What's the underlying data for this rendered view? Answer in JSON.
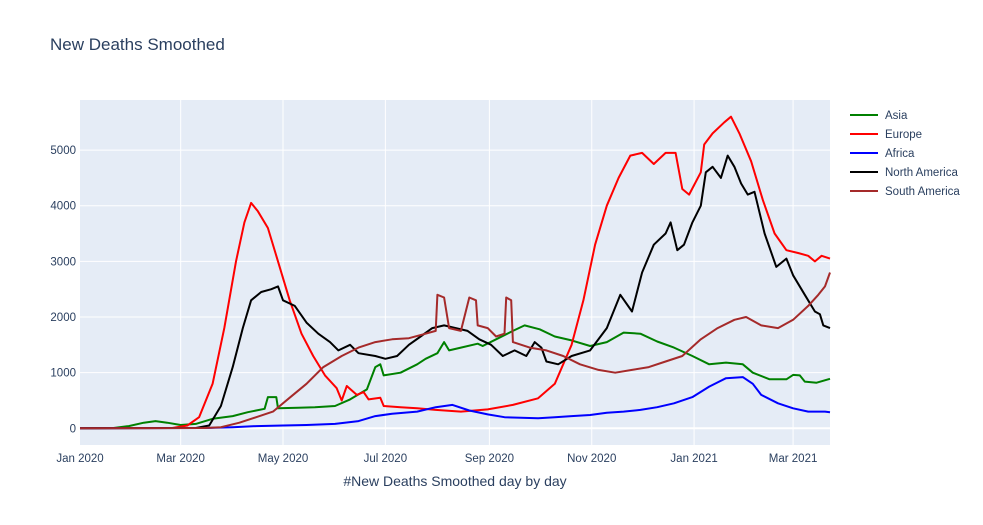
{
  "chart_data": {
    "type": "line",
    "title": "New Deaths Smoothed",
    "xlabel": "#New Deaths Smoothed day by day",
    "ylabel": "",
    "x_range": [
      "2020-01-01",
      "2021-03-23"
    ],
    "ylim": [
      -300,
      5900
    ],
    "grid": true,
    "legend_position": "right",
    "x_ticks": [
      {
        "date": "2020-01-01",
        "label": "Jan 2020"
      },
      {
        "date": "2020-03-01",
        "label": "Mar 2020"
      },
      {
        "date": "2020-05-01",
        "label": "May 2020"
      },
      {
        "date": "2020-07-01",
        "label": "Jul 2020"
      },
      {
        "date": "2020-09-01",
        "label": "Sep 2020"
      },
      {
        "date": "2020-11-01",
        "label": "Nov 2020"
      },
      {
        "date": "2021-01-01",
        "label": "Jan 2021"
      },
      {
        "date": "2021-03-01",
        "label": "Mar 2021"
      }
    ],
    "y_ticks": [
      {
        "value": 0,
        "label": "0"
      },
      {
        "value": 1000,
        "label": "1000"
      },
      {
        "value": 2000,
        "label": "2000"
      },
      {
        "value": 3000,
        "label": "3000"
      },
      {
        "value": 4000,
        "label": "4000"
      },
      {
        "value": 5000,
        "label": "5000"
      }
    ],
    "series": [
      {
        "name": "Asia",
        "color": "#008000",
        "points": [
          [
            "2020-01-01",
            0
          ],
          [
            "2020-01-21",
            5
          ],
          [
            "2020-01-30",
            40
          ],
          [
            "2020-02-08",
            100
          ],
          [
            "2020-02-15",
            130
          ],
          [
            "2020-02-22",
            100
          ],
          [
            "2020-03-01",
            60
          ],
          [
            "2020-03-10",
            80
          ],
          [
            "2020-03-20",
            170
          ],
          [
            "2020-04-01",
            220
          ],
          [
            "2020-04-10",
            290
          ],
          [
            "2020-04-20",
            350
          ],
          [
            "2020-04-22",
            560
          ],
          [
            "2020-04-27",
            560
          ],
          [
            "2020-04-28",
            360
          ],
          [
            "2020-05-10",
            370
          ],
          [
            "2020-05-20",
            380
          ],
          [
            "2020-06-01",
            400
          ],
          [
            "2020-06-10",
            520
          ],
          [
            "2020-06-20",
            700
          ],
          [
            "2020-06-25",
            1100
          ],
          [
            "2020-06-28",
            1150
          ],
          [
            "2020-06-30",
            950
          ],
          [
            "2020-07-10",
            1000
          ],
          [
            "2020-07-20",
            1150
          ],
          [
            "2020-07-25",
            1250
          ],
          [
            "2020-08-01",
            1350
          ],
          [
            "2020-08-05",
            1550
          ],
          [
            "2020-08-08",
            1400
          ],
          [
            "2020-08-15",
            1450
          ],
          [
            "2020-08-25",
            1520
          ],
          [
            "2020-08-28",
            1480
          ],
          [
            "2020-09-05",
            1600
          ],
          [
            "2020-09-15",
            1750
          ],
          [
            "2020-09-22",
            1850
          ],
          [
            "2020-10-01",
            1780
          ],
          [
            "2020-10-10",
            1650
          ],
          [
            "2020-10-20",
            1580
          ],
          [
            "2020-10-31",
            1480
          ],
          [
            "2020-11-10",
            1550
          ],
          [
            "2020-11-20",
            1720
          ],
          [
            "2020-11-30",
            1700
          ],
          [
            "2020-12-10",
            1560
          ],
          [
            "2020-12-20",
            1450
          ],
          [
            "2020-12-31",
            1300
          ],
          [
            "2021-01-10",
            1150
          ],
          [
            "2021-01-20",
            1180
          ],
          [
            "2021-01-30",
            1150
          ],
          [
            "2021-02-05",
            1000
          ],
          [
            "2021-02-15",
            880
          ],
          [
            "2021-02-25",
            880
          ],
          [
            "2021-03-01",
            960
          ],
          [
            "2021-03-05",
            950
          ],
          [
            "2021-03-08",
            840
          ],
          [
            "2021-03-15",
            820
          ],
          [
            "2021-03-23",
            890
          ]
        ]
      },
      {
        "name": "Europe",
        "color": "#ff0000",
        "points": [
          [
            "2020-01-01",
            0
          ],
          [
            "2020-02-25",
            5
          ],
          [
            "2020-03-05",
            50
          ],
          [
            "2020-03-12",
            200
          ],
          [
            "2020-03-20",
            800
          ],
          [
            "2020-03-27",
            1800
          ],
          [
            "2020-04-03",
            3000
          ],
          [
            "2020-04-08",
            3700
          ],
          [
            "2020-04-12",
            4050
          ],
          [
            "2020-04-16",
            3900
          ],
          [
            "2020-04-22",
            3600
          ],
          [
            "2020-04-28",
            3000
          ],
          [
            "2020-05-05",
            2300
          ],
          [
            "2020-05-12",
            1700
          ],
          [
            "2020-05-19",
            1300
          ],
          [
            "2020-05-26",
            950
          ],
          [
            "2020-06-02",
            720
          ],
          [
            "2020-06-05",
            500
          ],
          [
            "2020-06-08",
            760
          ],
          [
            "2020-06-14",
            600
          ],
          [
            "2020-06-18",
            650
          ],
          [
            "2020-06-21",
            520
          ],
          [
            "2020-06-28",
            550
          ],
          [
            "2020-06-30",
            400
          ],
          [
            "2020-07-10",
            380
          ],
          [
            "2020-07-20",
            360
          ],
          [
            "2020-07-31",
            330
          ],
          [
            "2020-08-15",
            300
          ],
          [
            "2020-08-31",
            340
          ],
          [
            "2020-09-15",
            420
          ],
          [
            "2020-09-30",
            540
          ],
          [
            "2020-10-10",
            800
          ],
          [
            "2020-10-20",
            1500
          ],
          [
            "2020-10-27",
            2300
          ],
          [
            "2020-11-03",
            3300
          ],
          [
            "2020-11-10",
            4000
          ],
          [
            "2020-11-17",
            4500
          ],
          [
            "2020-11-24",
            4900
          ],
          [
            "2020-12-01",
            4950
          ],
          [
            "2020-12-08",
            4750
          ],
          [
            "2020-12-15",
            4950
          ],
          [
            "2020-12-21",
            4950
          ],
          [
            "2020-12-25",
            4300
          ],
          [
            "2020-12-29",
            4200
          ],
          [
            "2021-01-05",
            4600
          ],
          [
            "2021-01-07",
            5100
          ],
          [
            "2021-01-12",
            5300
          ],
          [
            "2021-01-19",
            5500
          ],
          [
            "2021-01-23",
            5600
          ],
          [
            "2021-01-28",
            5300
          ],
          [
            "2021-02-04",
            4800
          ],
          [
            "2021-02-11",
            4100
          ],
          [
            "2021-02-18",
            3500
          ],
          [
            "2021-02-25",
            3200
          ],
          [
            "2021-03-04",
            3150
          ],
          [
            "2021-03-10",
            3100
          ],
          [
            "2021-03-14",
            3000
          ],
          [
            "2021-03-18",
            3100
          ],
          [
            "2021-03-23",
            3050
          ]
        ]
      },
      {
        "name": "Africa",
        "color": "#0000ff",
        "points": [
          [
            "2020-01-01",
            0
          ],
          [
            "2020-03-15",
            5
          ],
          [
            "2020-04-01",
            20
          ],
          [
            "2020-04-15",
            40
          ],
          [
            "2020-05-01",
            50
          ],
          [
            "2020-05-15",
            60
          ],
          [
            "2020-06-01",
            80
          ],
          [
            "2020-06-15",
            130
          ],
          [
            "2020-06-25",
            220
          ],
          [
            "2020-07-05",
            260
          ],
          [
            "2020-07-20",
            300
          ],
          [
            "2020-07-31",
            380
          ],
          [
            "2020-08-10",
            420
          ],
          [
            "2020-08-20",
            320
          ],
          [
            "2020-08-31",
            250
          ],
          [
            "2020-09-10",
            200
          ],
          [
            "2020-09-30",
            180
          ],
          [
            "2020-10-10",
            200
          ],
          [
            "2020-10-20",
            220
          ],
          [
            "2020-10-31",
            240
          ],
          [
            "2020-11-10",
            280
          ],
          [
            "2020-11-20",
            300
          ],
          [
            "2020-11-30",
            330
          ],
          [
            "2020-12-10",
            380
          ],
          [
            "2020-12-20",
            450
          ],
          [
            "2020-12-31",
            560
          ],
          [
            "2021-01-10",
            750
          ],
          [
            "2021-01-20",
            900
          ],
          [
            "2021-01-30",
            920
          ],
          [
            "2021-02-05",
            800
          ],
          [
            "2021-02-10",
            600
          ],
          [
            "2021-02-20",
            450
          ],
          [
            "2021-03-01",
            360
          ],
          [
            "2021-03-10",
            300
          ],
          [
            "2021-03-20",
            300
          ],
          [
            "2021-03-23",
            290
          ]
        ]
      },
      {
        "name": "North America",
        "color": "#000000",
        "points": [
          [
            "2020-01-01",
            0
          ],
          [
            "2020-03-10",
            5
          ],
          [
            "2020-03-18",
            50
          ],
          [
            "2020-03-25",
            400
          ],
          [
            "2020-04-01",
            1100
          ],
          [
            "2020-04-07",
            1800
          ],
          [
            "2020-04-12",
            2300
          ],
          [
            "2020-04-18",
            2450
          ],
          [
            "2020-04-24",
            2500
          ],
          [
            "2020-04-28",
            2550
          ],
          [
            "2020-05-01",
            2300
          ],
          [
            "2020-05-08",
            2200
          ],
          [
            "2020-05-15",
            1900
          ],
          [
            "2020-05-22",
            1700
          ],
          [
            "2020-05-29",
            1550
          ],
          [
            "2020-06-03",
            1400
          ],
          [
            "2020-06-10",
            1500
          ],
          [
            "2020-06-15",
            1350
          ],
          [
            "2020-06-25",
            1300
          ],
          [
            "2020-07-01",
            1250
          ],
          [
            "2020-07-08",
            1300
          ],
          [
            "2020-07-15",
            1500
          ],
          [
            "2020-07-22",
            1650
          ],
          [
            "2020-07-29",
            1800
          ],
          [
            "2020-08-05",
            1850
          ],
          [
            "2020-08-12",
            1800
          ],
          [
            "2020-08-19",
            1750
          ],
          [
            "2020-08-26",
            1600
          ],
          [
            "2020-09-02",
            1500
          ],
          [
            "2020-09-09",
            1300
          ],
          [
            "2020-09-16",
            1400
          ],
          [
            "2020-09-23",
            1300
          ],
          [
            "2020-09-28",
            1550
          ],
          [
            "2020-10-02",
            1450
          ],
          [
            "2020-10-05",
            1200
          ],
          [
            "2020-10-12",
            1150
          ],
          [
            "2020-10-20",
            1300
          ],
          [
            "2020-10-31",
            1400
          ],
          [
            "2020-11-10",
            1800
          ],
          [
            "2020-11-18",
            2400
          ],
          [
            "2020-11-25",
            2100
          ],
          [
            "2020-12-01",
            2800
          ],
          [
            "2020-12-08",
            3300
          ],
          [
            "2020-12-15",
            3500
          ],
          [
            "2020-12-18",
            3700
          ],
          [
            "2020-12-22",
            3200
          ],
          [
            "2020-12-26",
            3300
          ],
          [
            "2020-12-31",
            3700
          ],
          [
            "2021-01-05",
            4000
          ],
          [
            "2021-01-08",
            4600
          ],
          [
            "2021-01-12",
            4700
          ],
          [
            "2021-01-17",
            4500
          ],
          [
            "2021-01-21",
            4900
          ],
          [
            "2021-01-25",
            4700
          ],
          [
            "2021-01-29",
            4400
          ],
          [
            "2021-02-02",
            4200
          ],
          [
            "2021-02-06",
            4250
          ],
          [
            "2021-02-12",
            3500
          ],
          [
            "2021-02-19",
            2900
          ],
          [
            "2021-02-25",
            3050
          ],
          [
            "2021-03-01",
            2750
          ],
          [
            "2021-03-08",
            2400
          ],
          [
            "2021-03-14",
            2100
          ],
          [
            "2021-03-17",
            2050
          ],
          [
            "2021-03-19",
            1850
          ],
          [
            "2021-03-23",
            1800
          ]
        ]
      },
      {
        "name": "South America",
        "color": "#a52a2a",
        "points": [
          [
            "2020-01-01",
            0
          ],
          [
            "2020-03-15",
            5
          ],
          [
            "2020-03-25",
            20
          ],
          [
            "2020-04-05",
            100
          ],
          [
            "2020-04-15",
            200
          ],
          [
            "2020-04-25",
            300
          ],
          [
            "2020-05-05",
            550
          ],
          [
            "2020-05-15",
            800
          ],
          [
            "2020-05-25",
            1100
          ],
          [
            "2020-06-05",
            1300
          ],
          [
            "2020-06-15",
            1450
          ],
          [
            "2020-06-25",
            1550
          ],
          [
            "2020-07-05",
            1600
          ],
          [
            "2020-07-15",
            1620
          ],
          [
            "2020-07-25",
            1700
          ],
          [
            "2020-07-31",
            1750
          ],
          [
            "2020-08-01",
            2400
          ],
          [
            "2020-08-05",
            2350
          ],
          [
            "2020-08-08",
            1800
          ],
          [
            "2020-08-15",
            1750
          ],
          [
            "2020-08-20",
            2350
          ],
          [
            "2020-08-24",
            2300
          ],
          [
            "2020-08-25",
            1850
          ],
          [
            "2020-08-31",
            1800
          ],
          [
            "2020-09-05",
            1650
          ],
          [
            "2020-09-10",
            1700
          ],
          [
            "2020-09-11",
            2350
          ],
          [
            "2020-09-14",
            2300
          ],
          [
            "2020-09-15",
            1550
          ],
          [
            "2020-09-25",
            1450
          ],
          [
            "2020-10-05",
            1400
          ],
          [
            "2020-10-15",
            1300
          ],
          [
            "2020-10-25",
            1150
          ],
          [
            "2020-11-05",
            1050
          ],
          [
            "2020-11-15",
            1000
          ],
          [
            "2020-11-25",
            1050
          ],
          [
            "2020-12-05",
            1100
          ],
          [
            "2020-12-15",
            1200
          ],
          [
            "2020-12-25",
            1300
          ],
          [
            "2021-01-05",
            1600
          ],
          [
            "2021-01-15",
            1800
          ],
          [
            "2021-01-25",
            1950
          ],
          [
            "2021-02-01",
            2000
          ],
          [
            "2021-02-10",
            1850
          ],
          [
            "2021-02-20",
            1800
          ],
          [
            "2021-03-01",
            1950
          ],
          [
            "2021-03-10",
            2200
          ],
          [
            "2021-03-16",
            2400
          ],
          [
            "2021-03-20",
            2550
          ],
          [
            "2021-03-23",
            2800
          ]
        ]
      }
    ]
  }
}
